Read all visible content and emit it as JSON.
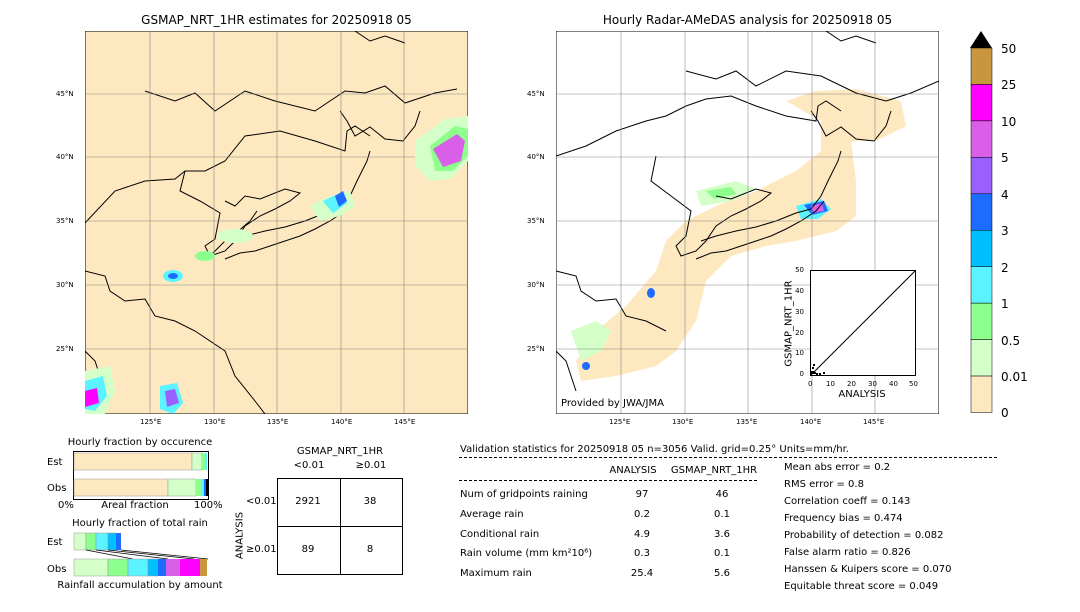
{
  "left_map": {
    "title": "GSMAP_NRT_1HR estimates for 20250918 05",
    "lat_labels": [
      "45°N",
      "40°N",
      "35°N",
      "30°N",
      "25°N"
    ],
    "lon_labels": [
      "125°E",
      "130°E",
      "135°E",
      "140°E",
      "145°E"
    ]
  },
  "right_map": {
    "title": "Hourly Radar-AMeDAS analysis for 20250918 05",
    "lat_labels": [
      "45°N",
      "40°N",
      "35°N",
      "30°N",
      "25°N"
    ],
    "lon_labels": [
      "125°E",
      "130°E",
      "135°E",
      "140°E",
      "145°E"
    ],
    "credit": "Provided by JWA/JMA"
  },
  "colorbar": {
    "labels": [
      "50",
      "25",
      "10",
      "5",
      "4",
      "3",
      "2",
      "1",
      "0.5",
      "0.01",
      "0"
    ],
    "colors": [
      "#c8963c",
      "#ff00ff",
      "#da5fe8",
      "#9a5fff",
      "#1e6bff",
      "#00bfff",
      "#5bf3ff",
      "#8dff8d",
      "#d4ffc8",
      "#fde8c0"
    ],
    "extend_color": "#000000"
  },
  "scatter": {
    "xlabel": "ANALYSIS",
    "ylabel": "GSMAP_NRT_1HR",
    "ticks": [
      "0",
      "10",
      "20",
      "30",
      "40",
      "50"
    ]
  },
  "occurrence": {
    "title": "Hourly fraction by occurence",
    "row_labels": [
      "Est",
      "Obs"
    ],
    "axis_left": "0%",
    "axis_mid": "Areal fraction",
    "axis_right": "100%"
  },
  "total_rain": {
    "title": "Hourly fraction of total rain",
    "row_labels": [
      "Est",
      "Obs"
    ],
    "footer": "Rainfall accumulation by amount"
  },
  "contingency": {
    "title": "GSMAP_NRT_1HR",
    "col_headers": [
      "<0.01",
      "≥0.01"
    ],
    "row_axis": "ANALYSIS",
    "row_headers": [
      "<0.01",
      "≥0.01"
    ],
    "cells": [
      [
        "2921",
        "38"
      ],
      [
        "89",
        "8"
      ]
    ]
  },
  "validation": {
    "header": "Validation statistics for 20250918 05  n=3056 Valid. grid=0.25°  Units=mm/hr.",
    "col_analysis": "ANALYSIS",
    "col_gsmap": "GSMAP_NRT_1HR",
    "rows": [
      {
        "label": "Num of gridpoints raining",
        "analysis": "97",
        "gsmap": "46"
      },
      {
        "label": "Average rain",
        "analysis": "0.2",
        "gsmap": "0.1"
      },
      {
        "label": "Conditional rain",
        "analysis": "4.9",
        "gsmap": "3.6"
      },
      {
        "label": "Rain volume (mm km²10⁶)",
        "analysis": "0.3",
        "gsmap": "0.1"
      },
      {
        "label": "Maximum rain",
        "analysis": "25.4",
        "gsmap": "5.6"
      }
    ],
    "scores": [
      "Mean abs error =    0.2",
      "RMS error =    0.8",
      "Correlation coeff =  0.143",
      "Frequency bias =  0.474",
      "Probability of detection =  0.082",
      "False alarm ratio =  0.826",
      "Hanssen & Kuipers score =  0.070",
      "Equitable threat score =  0.049"
    ]
  }
}
